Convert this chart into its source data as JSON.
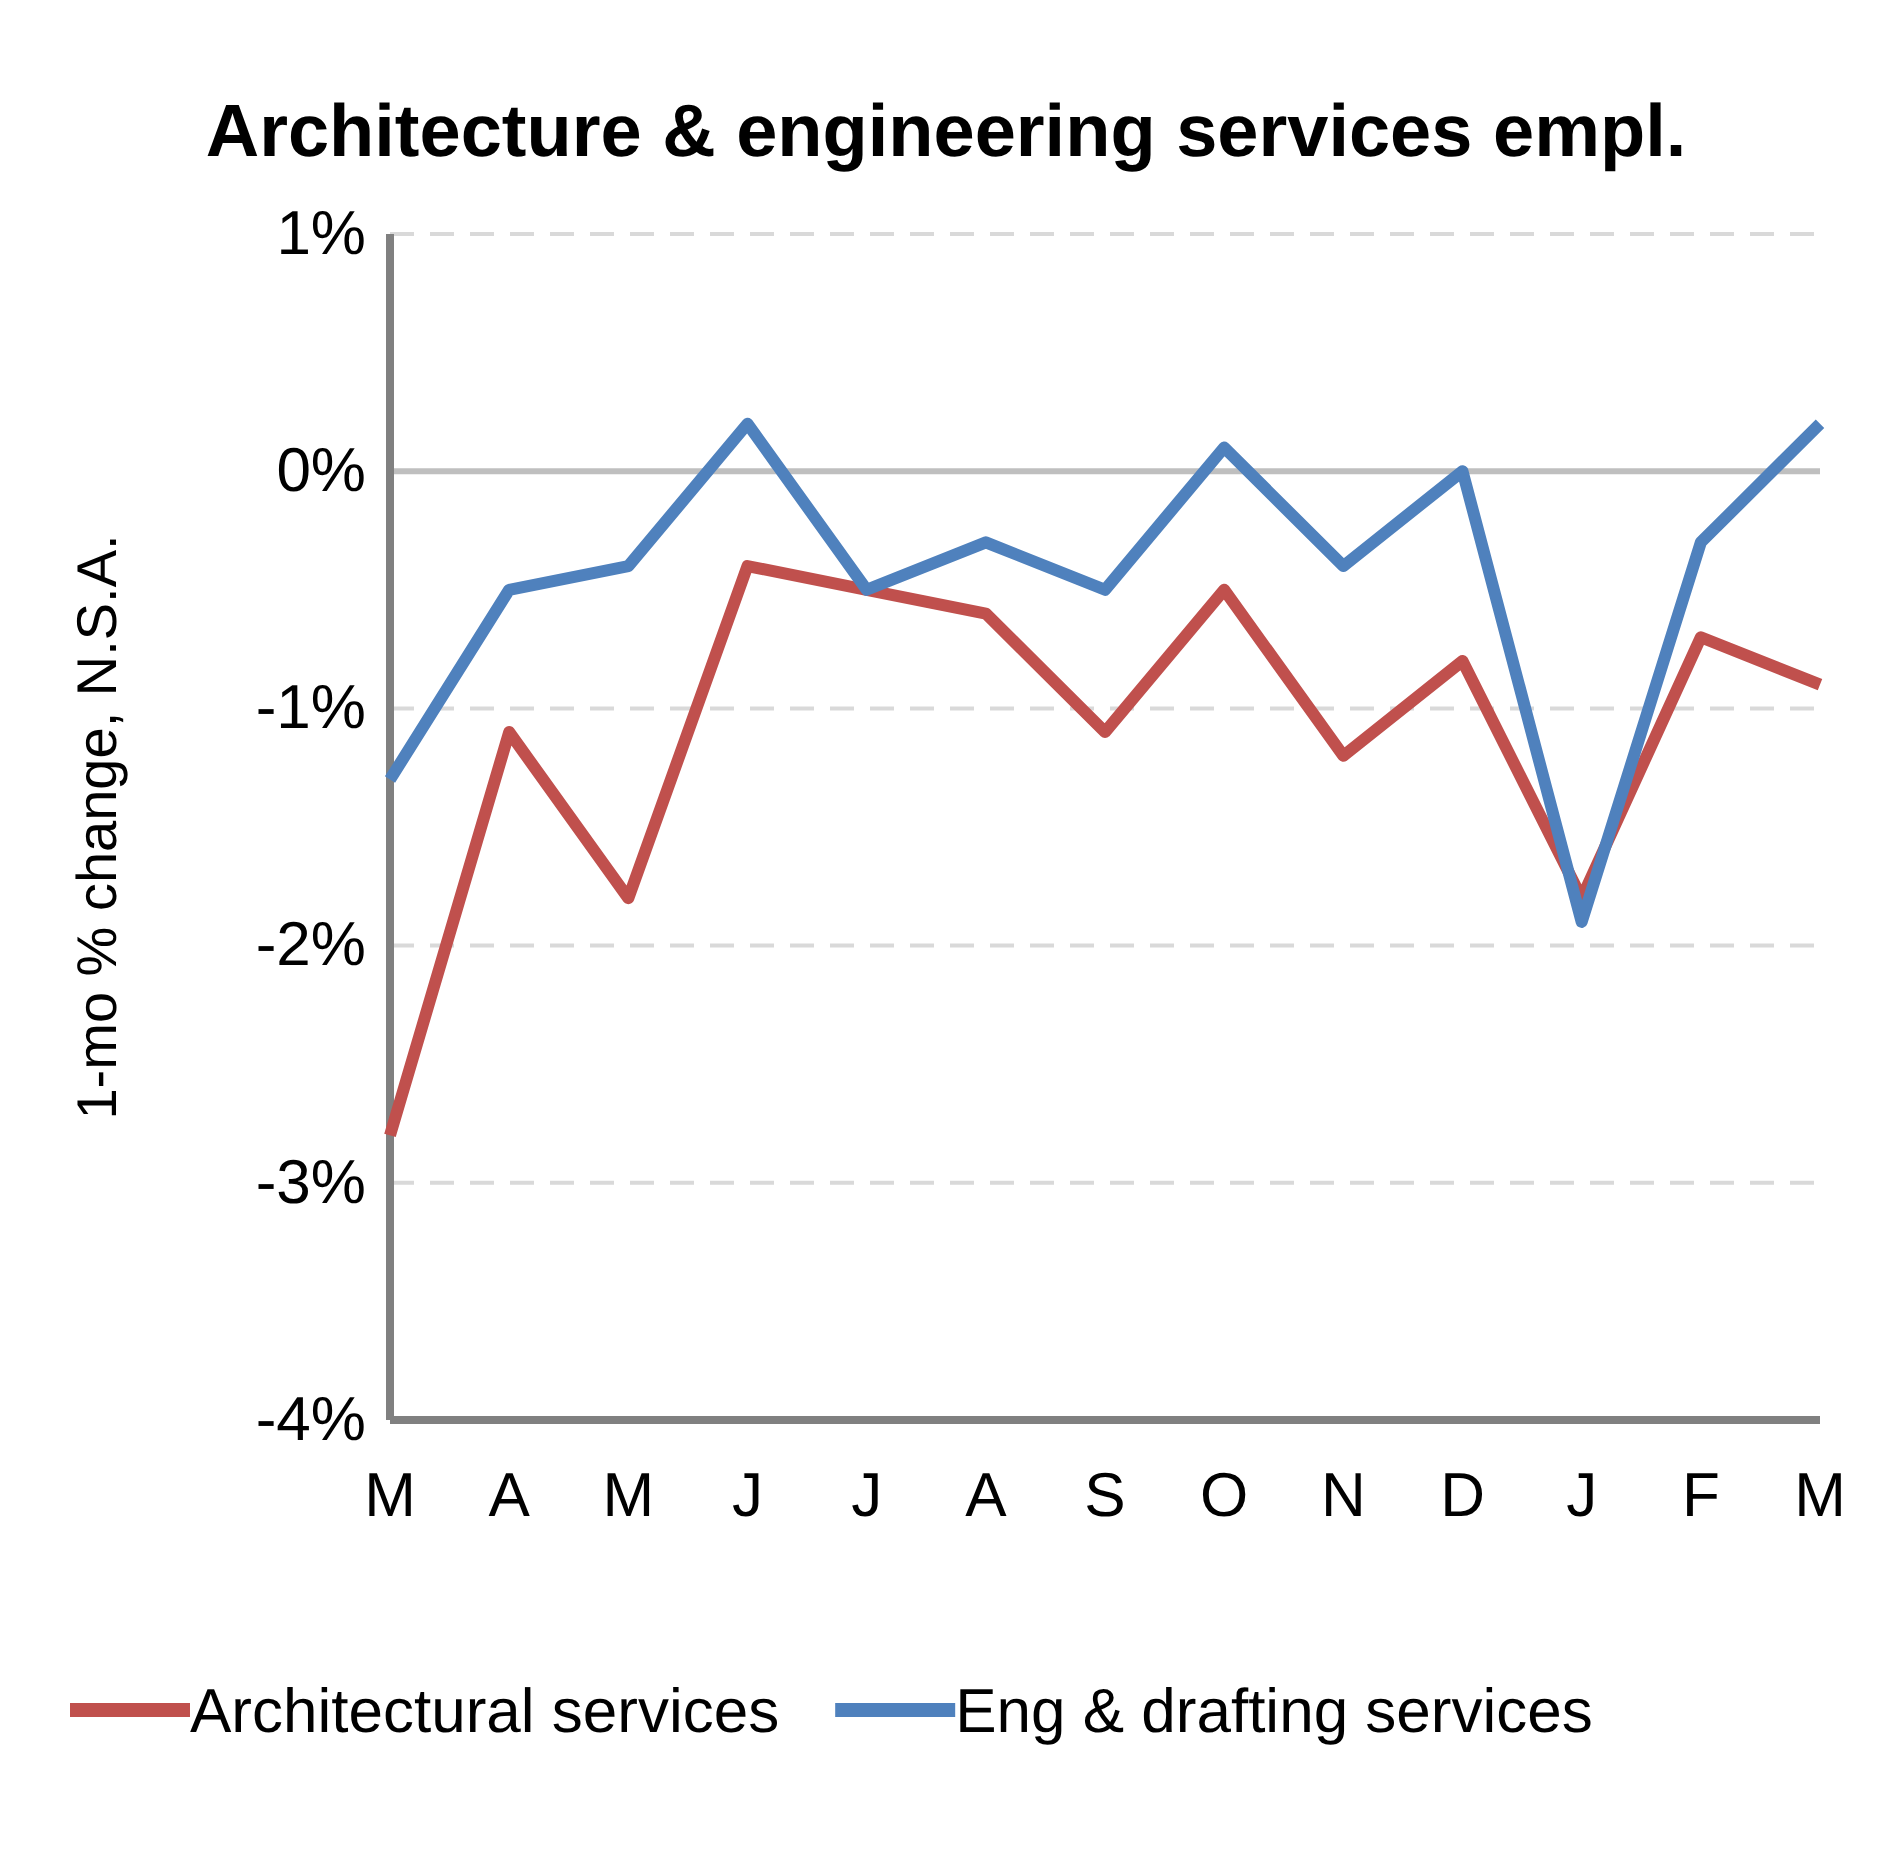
{
  "chart_data": {
    "type": "line",
    "title": "Architecture & engineering services empl.",
    "ylabel": "1-mo % change, N.S.A.",
    "categories": [
      "M",
      "A",
      "M",
      "J",
      "J",
      "A",
      "S",
      "O",
      "N",
      "D",
      "J",
      "F",
      "M"
    ],
    "series": [
      {
        "name": "Architectural services",
        "color": "#c0504d",
        "values": [
          -2.8,
          -1.1,
          -1.8,
          -0.4,
          -0.5,
          -0.6,
          -1.1,
          -0.5,
          -1.2,
          -0.8,
          -1.8,
          -0.7,
          -0.9
        ]
      },
      {
        "name": "Eng & drafting services",
        "color": "#4f81bd",
        "values": [
          -1.3,
          -0.5,
          -0.4,
          0.2,
          -0.5,
          -0.3,
          -0.5,
          0.1,
          -0.4,
          0.0,
          -1.9,
          -0.3,
          0.2
        ]
      }
    ],
    "ylim": [
      -4,
      1
    ],
    "yticks": [
      {
        "value": -4,
        "label": "-4%"
      },
      {
        "value": -3,
        "label": "-3%"
      },
      {
        "value": -2,
        "label": "-2%"
      },
      {
        "value": -1,
        "label": "-1%"
      },
      {
        "value": 0,
        "label": "0%"
      },
      {
        "value": 1,
        "label": "1%"
      }
    ],
    "ref_lines": [
      {
        "axis": "y",
        "value": 0,
        "label": null,
        "color": "#bfbfbf"
      }
    ],
    "grid": "y",
    "legend": "bottom",
    "marker": "none",
    "line_style": "solid"
  }
}
